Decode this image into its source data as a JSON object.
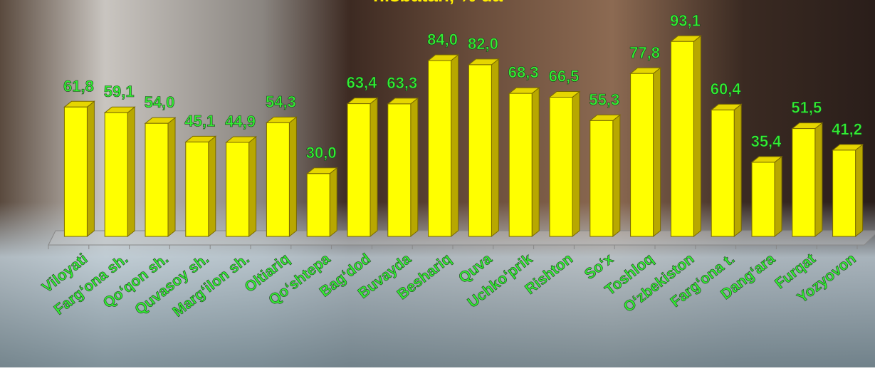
{
  "chart_data": {
    "type": "bar3d",
    "title": "nisbatan, % da",
    "categories": [
      "Viloyati",
      "Farg‘ona sh.",
      "Qo‘qon sh.",
      "Quvasoy sh.",
      "Marg‘ilon sh.",
      "Oltiariq",
      "Qo‘shtepa",
      "Bag‘dod",
      "Buvayda",
      "Beshariq",
      "Quva",
      "Uchko‘prik",
      "Rishton",
      "So‘x",
      "Toshloq",
      "O‘zbekiston",
      "Farg‘ona t.",
      "Dang‘ara",
      "Furqat",
      "Yozyovon"
    ],
    "values": [
      61.8,
      59.1,
      54.0,
      45.1,
      44.9,
      54.3,
      30.0,
      63.4,
      63.3,
      84.0,
      82.0,
      68.3,
      66.5,
      55.3,
      77.8,
      93.1,
      60.4,
      35.4,
      51.5,
      41.2
    ],
    "value_labels": [
      "61,8",
      "59,1",
      "54,0",
      "45,1",
      "44,9",
      "54,3",
      "30,0",
      "63,4",
      "63,3",
      "84,0",
      "82,0",
      "68,3",
      "66,5",
      "55,3",
      "77,8",
      "93,1",
      "60,4",
      "35,4",
      "51,5",
      "41,2"
    ],
    "color": "#ffff00",
    "ylim": [
      0,
      100
    ]
  }
}
